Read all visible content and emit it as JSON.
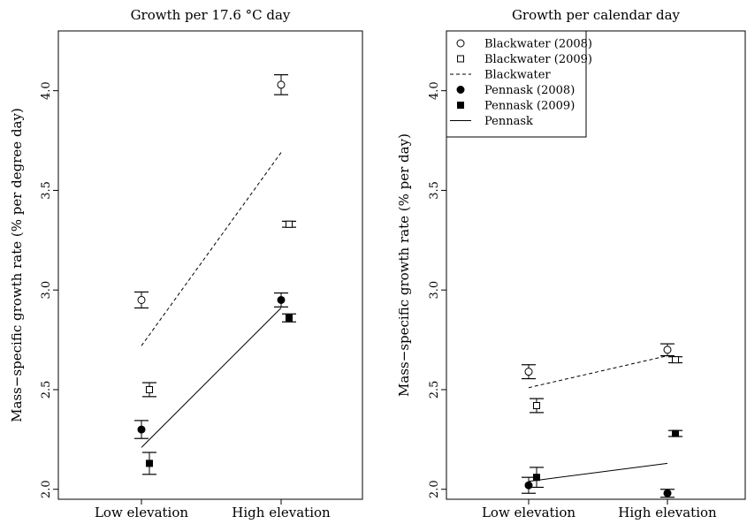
{
  "chart_data": [
    {
      "type": "scatter",
      "title": "Growth per 17.6 °C day",
      "xlabel": "",
      "ylabel": "Mass−specific growth rate (% per degree day)",
      "categories": [
        "Low elevation",
        "High elevation"
      ],
      "ylim": [
        1.95,
        4.3
      ],
      "yticks": [
        "2.0",
        "2.5",
        "3.0",
        "3.5",
        "4.0"
      ],
      "grid": false,
      "series": [
        {
          "name": "Blackwater (2008)",
          "marker": "open-circle",
          "x": [
            1,
            2
          ],
          "values": [
            2.95,
            4.03
          ],
          "errors": [
            0.04,
            0.05
          ]
        },
        {
          "name": "Blackwater (2009)",
          "marker": "open-square",
          "x": [
            1.06,
            2.06
          ],
          "values": [
            2.5,
            3.33
          ],
          "errors": [
            0.035,
            0.015
          ]
        },
        {
          "name": "Pennask (2008)",
          "marker": "filled-circle",
          "x": [
            1,
            2
          ],
          "values": [
            2.3,
            2.95
          ],
          "errors": [
            0.045,
            0.035
          ]
        },
        {
          "name": "Pennask (2009)",
          "marker": "filled-square",
          "x": [
            1.06,
            2.06
          ],
          "values": [
            2.13,
            2.86
          ],
          "errors": [
            0.055,
            0.02
          ]
        }
      ],
      "lines": [
        {
          "name": "Blackwater",
          "style": "dashed",
          "x": [
            1,
            2
          ],
          "values": [
            2.72,
            3.69
          ]
        },
        {
          "name": "Pennask",
          "style": "solid",
          "x": [
            1,
            2
          ],
          "values": [
            2.21,
            2.91
          ]
        }
      ]
    },
    {
      "type": "scatter",
      "title": "Growth per calendar day",
      "xlabel": "",
      "ylabel": "Mass−specific growth rate (% per day)",
      "categories": [
        "Low elevation",
        "High elevation"
      ],
      "ylim": [
        1.95,
        4.3
      ],
      "yticks": [
        "2.0",
        "2.5",
        "3.0",
        "3.5",
        "4.0"
      ],
      "grid": false,
      "legend_position": "top-left",
      "series": [
        {
          "name": "Blackwater (2008)",
          "marker": "open-circle",
          "x": [
            1,
            2
          ],
          "values": [
            2.59,
            2.7
          ],
          "errors": [
            0.035,
            0.03
          ]
        },
        {
          "name": "Blackwater (2009)",
          "marker": "open-square",
          "x": [
            1.06,
            2.06
          ],
          "values": [
            2.42,
            2.65
          ],
          "errors": [
            0.035,
            0.015
          ]
        },
        {
          "name": "Pennask (2008)",
          "marker": "filled-circle",
          "x": [
            1,
            2
          ],
          "values": [
            2.02,
            1.98
          ],
          "errors": [
            0.04,
            0.02
          ]
        },
        {
          "name": "Pennask (2009)",
          "marker": "filled-square",
          "x": [
            1.06,
            2.06
          ],
          "values": [
            2.06,
            2.28
          ],
          "errors": [
            0.05,
            0.015
          ]
        }
      ],
      "lines": [
        {
          "name": "Blackwater",
          "style": "dashed",
          "x": [
            1,
            2
          ],
          "values": [
            2.51,
            2.67
          ]
        },
        {
          "name": "Pennask",
          "style": "solid",
          "x": [
            1,
            2
          ],
          "values": [
            2.04,
            2.13
          ]
        }
      ]
    }
  ],
  "legend": {
    "entries": [
      {
        "label": "Blackwater (2008)",
        "marker": "open-circle"
      },
      {
        "label": "Blackwater (2009)",
        "marker": "open-square"
      },
      {
        "label": "Blackwater",
        "marker": "dashed-line"
      },
      {
        "label": "Pennask (2008)",
        "marker": "filled-circle"
      },
      {
        "label": "Pennask (2009)",
        "marker": "filled-square"
      },
      {
        "label": "Pennask",
        "marker": "solid-line"
      }
    ]
  }
}
